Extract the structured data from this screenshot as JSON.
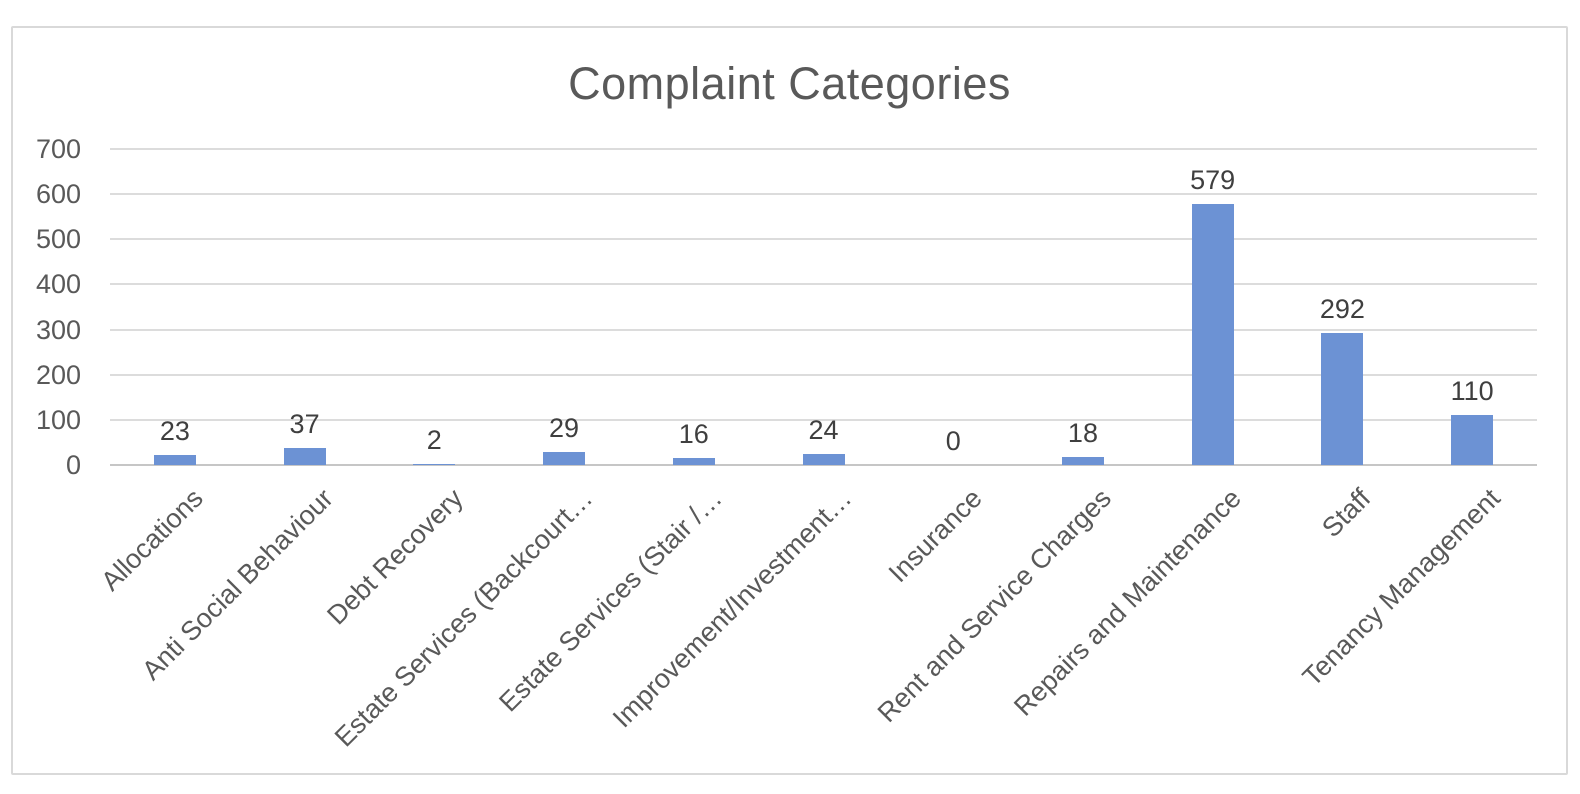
{
  "chart": {
    "title": "Complaint Categories",
    "colors": {
      "bar": "#6C92D4",
      "gridline": "#DCDCDC",
      "axis_line": "#C6C6C6",
      "title_text": "#595959",
      "tick_text": "#595959",
      "data_label_text": "#3F3F3F",
      "frame_border": "#D9D9D9",
      "background": "#FFFFFF"
    }
  },
  "chart_data": {
    "type": "bar",
    "title": "Complaint Categories",
    "categories": [
      "Allocations",
      "Anti Social Behaviour",
      "Debt Recovery",
      "Estate Services (Backcourt…",
      "Estate Services (Stair /…",
      "Improvement/Investment…",
      "Insurance",
      "Rent and Service Charges",
      "Repairs and Maintenance",
      "Staff",
      "Tenancy Management"
    ],
    "values": [
      23,
      37,
      2,
      29,
      16,
      24,
      0,
      18,
      579,
      292,
      110
    ],
    "data_labels": [
      "23",
      "37",
      "2",
      "29",
      "16",
      "24",
      "0",
      "18",
      "579",
      "292",
      "110"
    ],
    "xlabel": "",
    "ylabel": "",
    "ylim": [
      0,
      700
    ],
    "ytick_interval": 100,
    "yticks": [
      "0",
      "100",
      "200",
      "300",
      "400",
      "500",
      "600",
      "700"
    ],
    "grid": "horizontal",
    "legend": "none",
    "x_label_rotation_deg": 45
  }
}
